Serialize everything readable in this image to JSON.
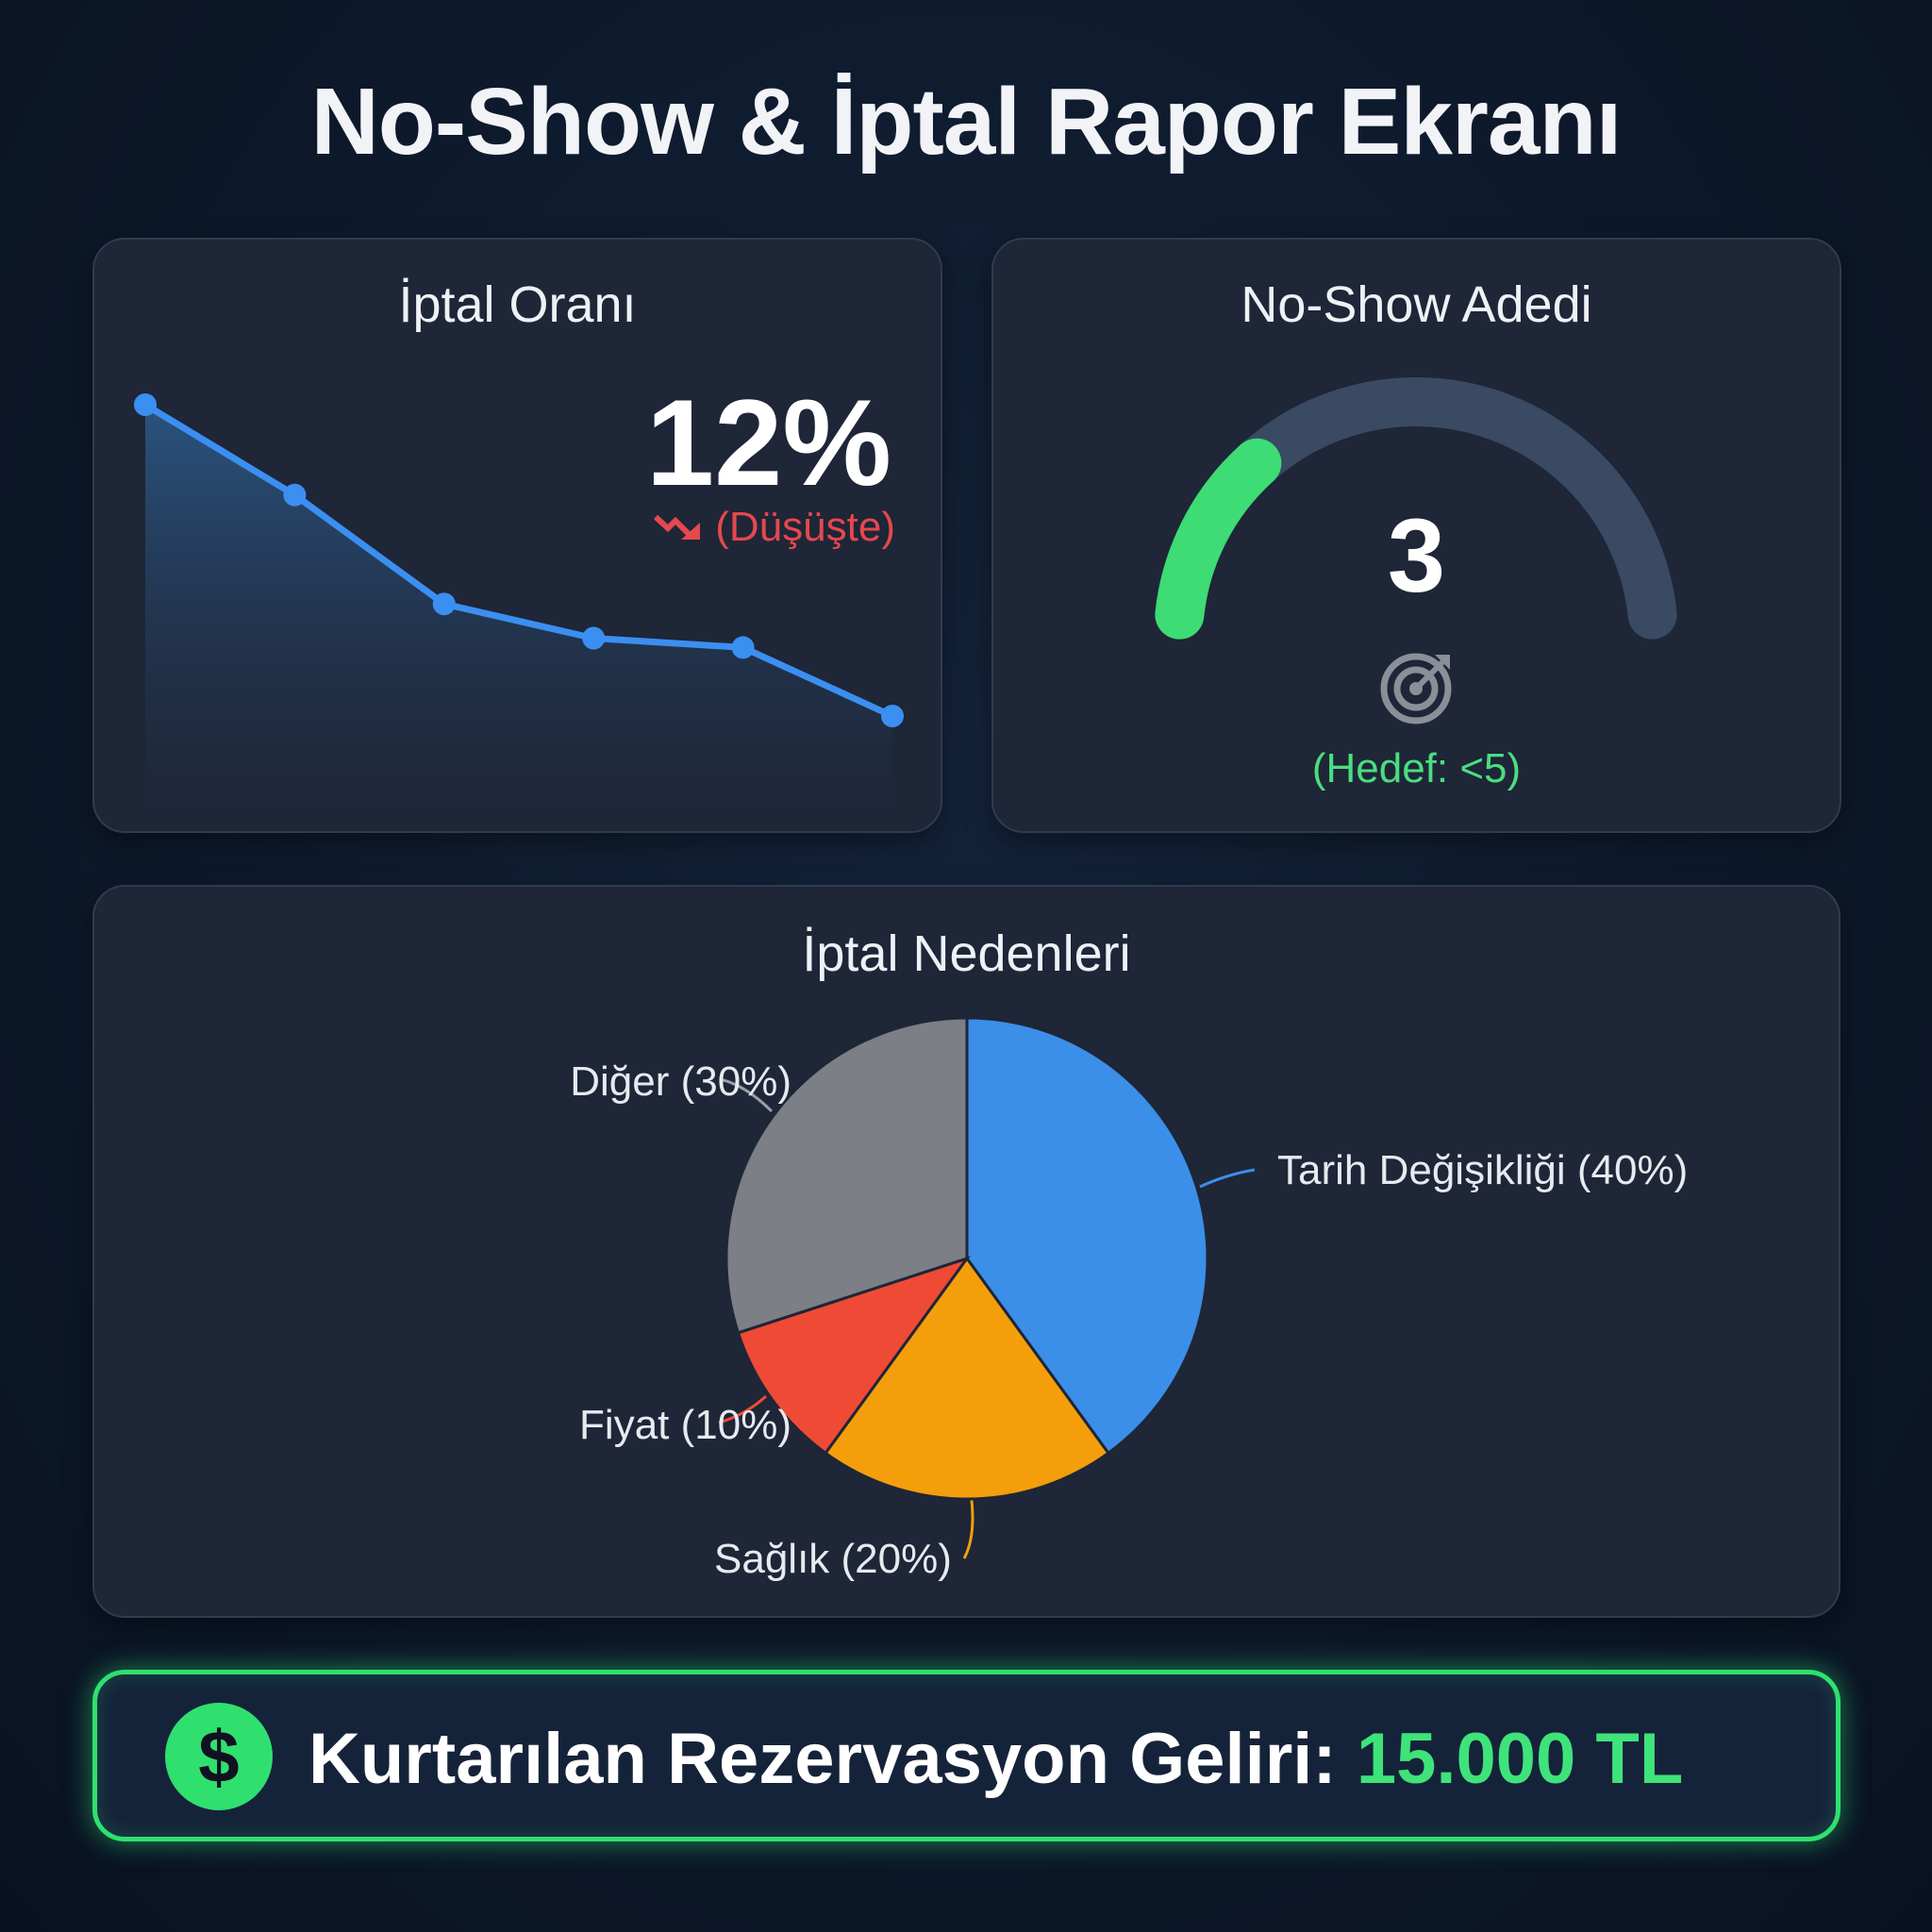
{
  "header": {
    "title": "No-Show & İptal Rapor Ekranı"
  },
  "cancel_rate": {
    "title": "İptal Oranı",
    "value": "12%",
    "trend_label": "(Düşüşte)",
    "trend_icon": "trend-down-icon",
    "trend_color": "#e5484d",
    "line_color": "#3b8ff0"
  },
  "no_show": {
    "title": "No-Show Adedi",
    "value": "3",
    "gauge_fraction": 0.25,
    "target_icon": "target-icon",
    "target_label": "(Hedef: <5)",
    "gauge_color": "#3ddc74"
  },
  "reasons": {
    "title": "İptal Nedenleri"
  },
  "banner": {
    "icon": "dollar-icon",
    "label": "Kurtarılan Rezervasyon Geliri:",
    "value": "15.000 TL",
    "accent": "#2fe06f"
  },
  "chart_data": [
    {
      "type": "area",
      "title": "İptal Oranı",
      "values": [
        22,
        19.1,
        15.6,
        14.5,
        14.2,
        12
      ]
    },
    {
      "type": "pie",
      "title": "İptal Nedenleri",
      "slices": [
        {
          "label": "Tarih Değişikliği (40%)",
          "value": 40,
          "color": "#3b8fe8"
        },
        {
          "label": "Sağlık (20%)",
          "value": 20,
          "color": "#f59e0b"
        },
        {
          "label": "Fiyat (10%)",
          "value": 10,
          "color": "#ef4a35"
        },
        {
          "label": "Diğer (30%)",
          "value": 30,
          "color": "#7c7f85"
        }
      ]
    }
  ]
}
